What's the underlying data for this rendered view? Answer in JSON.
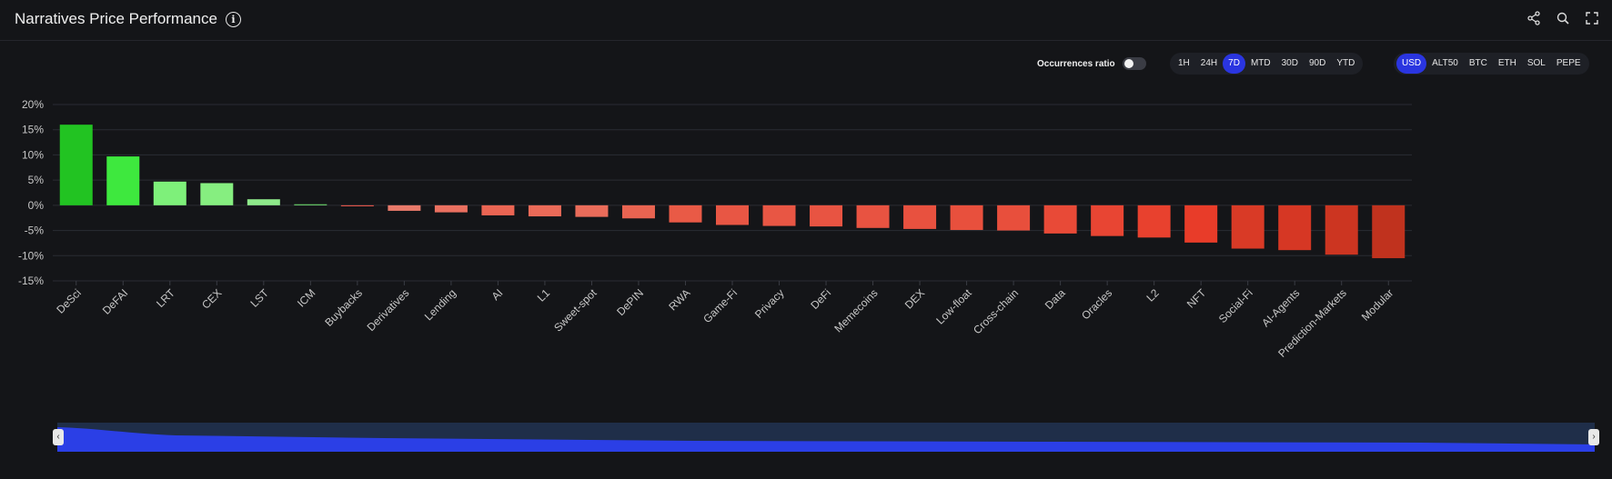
{
  "header": {
    "title": "Narratives Price Performance"
  },
  "toolbar_icons": [
    "share-icon",
    "zoom-icon",
    "fullscreen-icon"
  ],
  "controls": {
    "occurrences_label": "Occurrences ratio",
    "occurrences_on": false,
    "time_ranges": [
      "1H",
      "24H",
      "7D",
      "MTD",
      "30D",
      "90D",
      "YTD"
    ],
    "time_selected": "7D",
    "currencies": [
      "USD",
      "ALT50",
      "BTC",
      "ETH",
      "SOL",
      "PEPE"
    ],
    "currency_selected": "USD"
  },
  "colors": {
    "accent": "#2a35e0",
    "background": "#141518",
    "positive": "#22c322",
    "negative": "#e8402a"
  },
  "chart_data": {
    "type": "bar",
    "categories": [
      "DeSci",
      "DeFAI",
      "LRT",
      "CEX",
      "LST",
      "ICM",
      "Buybacks",
      "Derivatives",
      "Lending",
      "AI",
      "L1",
      "Sweet-spot",
      "DePIN",
      "RWA",
      "Game-Fi",
      "Privacy",
      "DeFi",
      "Memecoins",
      "DEX",
      "Low-float",
      "Cross-chain",
      "Data",
      "Oracles",
      "L2",
      "NFT",
      "Social-Fi",
      "AI-Agents",
      "Prediction-Markets",
      "Modular"
    ],
    "values": [
      16.0,
      9.7,
      4.7,
      4.4,
      1.2,
      0.2,
      -0.2,
      -1.1,
      -1.4,
      -2.0,
      -2.2,
      -2.3,
      -2.6,
      -3.4,
      -3.9,
      -4.1,
      -4.2,
      -4.5,
      -4.7,
      -4.9,
      -5.0,
      -5.6,
      -6.1,
      -6.4,
      -7.4,
      -8.6,
      -8.9,
      -9.8,
      -10.5
    ],
    "colors": [
      "#22c322",
      "#3ee83e",
      "#7ef07a",
      "#86ee80",
      "#8ee98a",
      "#6cd66c",
      "#e8574a",
      "#e87a6a",
      "#ea7060",
      "#ea6553",
      "#ea6a58",
      "#ea6c5a",
      "#e96451",
      "#e95a46",
      "#e85644",
      "#e85644",
      "#e85442",
      "#e85341",
      "#e8513f",
      "#e8503d",
      "#e84f3c",
      "#e84a37",
      "#e84533",
      "#e8412e",
      "#e83c29",
      "#d93a26",
      "#d63724",
      "#cc3521",
      "#c0321e"
    ],
    "yticks": [
      "20%",
      "15%",
      "10%",
      "5%",
      "0%",
      "-5%",
      "-10%",
      "-15%"
    ],
    "ylim": [
      -15,
      20
    ],
    "grid": true,
    "legend": "none",
    "navigator": true
  }
}
